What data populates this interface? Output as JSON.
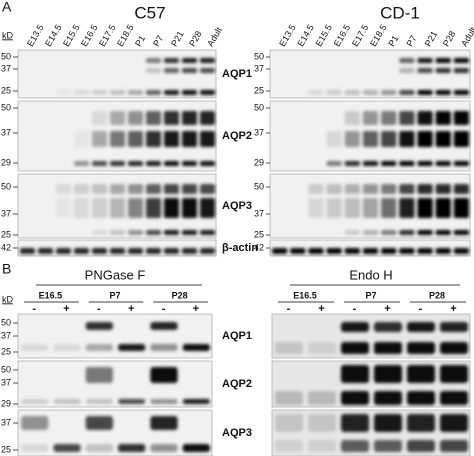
{
  "panel_a": {
    "label": "A",
    "kd_label": "kD",
    "strains": [
      {
        "title": "CD-1",
        "lanes": [
          "E13.5",
          "E14.5",
          "E15.5",
          "E16.5",
          "E17.5",
          "E18.5",
          "P1",
          "P7",
          "P21",
          "P28",
          "Adult"
        ]
      },
      {
        "title": "C57",
        "lanes": [
          "E13.5",
          "E14.5",
          "E15.5",
          "E16.5",
          "E17.5",
          "E18.5",
          "P1",
          "P7",
          "P21",
          "P28",
          "Adult"
        ]
      }
    ],
    "rows": [
      {
        "label": "AQP1",
        "markers": [
          "50",
          "37",
          "25"
        ]
      },
      {
        "label": "AQP2",
        "markers": [
          "50",
          "37",
          "29"
        ]
      },
      {
        "label": "AQP3",
        "markers": [
          "50",
          "37",
          "25"
        ]
      },
      {
        "label": "β-actin",
        "markers": [
          "42"
        ]
      }
    ]
  },
  "panel_b": {
    "label": "B",
    "kd_label": "kD",
    "treatments": [
      {
        "title": "PNGase F",
        "groups": [
          {
            "name": "E16.5",
            "lanes": [
              "-",
              "+"
            ]
          },
          {
            "name": "P7",
            "lanes": [
              "-",
              "+"
            ]
          },
          {
            "name": "P28",
            "lanes": [
              "-",
              "+"
            ]
          }
        ]
      },
      {
        "title": "Endo H",
        "groups": [
          {
            "name": "E16.5",
            "lanes": [
              "-",
              "+"
            ]
          },
          {
            "name": "P7",
            "lanes": [
              "-",
              "+"
            ]
          },
          {
            "name": "P28",
            "lanes": [
              "-",
              "+"
            ]
          }
        ]
      }
    ],
    "rows": [
      {
        "label": "AQP1",
        "markers": [
          "50",
          "37",
          "25"
        ]
      },
      {
        "label": "AQP2",
        "markers": [
          "50",
          "37",
          "29"
        ]
      },
      {
        "label": "AQP3",
        "markers": [
          "37",
          "25"
        ]
      }
    ]
  }
}
